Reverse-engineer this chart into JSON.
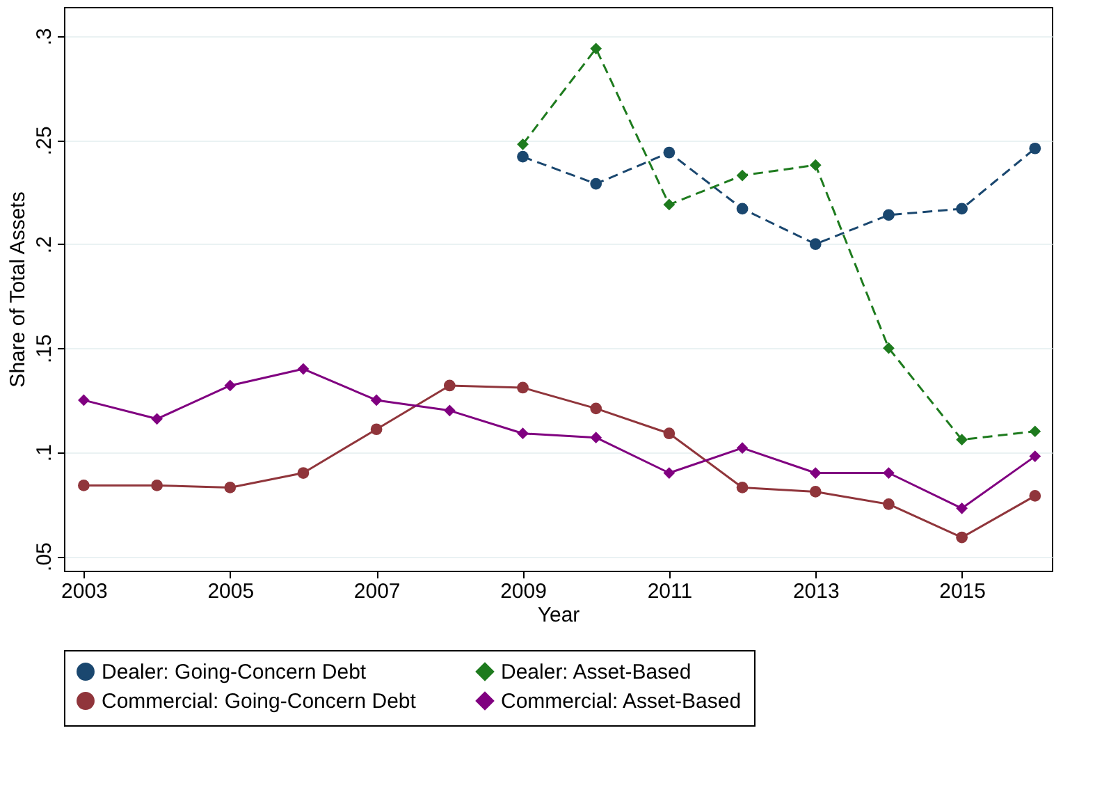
{
  "chart_data": {
    "type": "line",
    "xlabel": "Year",
    "ylabel": "Share of Total Assets",
    "x": [
      2003,
      2004,
      2005,
      2006,
      2007,
      2008,
      2009,
      2010,
      2011,
      2012,
      2013,
      2014,
      2015,
      2016
    ],
    "xlim": [
      2002.73,
      2016.23
    ],
    "xticks": [
      2003,
      2005,
      2007,
      2009,
      2011,
      2013,
      2015
    ],
    "ylim": [
      0.043,
      0.314
    ],
    "yticks": [
      {
        "value": 0.05,
        "label": ".05"
      },
      {
        "value": 0.1,
        "label": ".1"
      },
      {
        "value": 0.15,
        "label": ".15"
      },
      {
        "value": 0.2,
        "label": ".2"
      },
      {
        "value": 0.25,
        "label": ".25"
      },
      {
        "value": 0.3,
        "label": ".3"
      }
    ],
    "grid": "y",
    "legend": "bottom",
    "series": [
      {
        "name": "Dealer: Going-Concern Debt",
        "color": "#1a476f",
        "marker": "circle",
        "line_style": "dashed",
        "values": [
          null,
          null,
          null,
          null,
          null,
          null,
          0.242,
          0.229,
          0.244,
          0.217,
          0.2,
          0.214,
          0.217,
          0.246
        ]
      },
      {
        "name": "Dealer: Asset-Based",
        "color": "#1e7b1e",
        "marker": "diamond",
        "line_style": "dashed",
        "values": [
          null,
          null,
          null,
          null,
          null,
          null,
          0.248,
          0.294,
          0.219,
          0.233,
          0.238,
          0.15,
          0.106,
          0.11
        ]
      },
      {
        "name": "Commercial: Going-Concern Debt",
        "color": "#90353b",
        "marker": "circle",
        "line_style": "solid",
        "values": [
          0.084,
          0.084,
          0.083,
          0.09,
          0.111,
          0.132,
          0.131,
          0.121,
          0.109,
          0.083,
          0.081,
          0.075,
          0.059,
          0.079
        ]
      },
      {
        "name": "Commercial: Asset-Based",
        "color": "#800080",
        "marker": "diamond",
        "line_style": "solid",
        "values": [
          0.125,
          0.116,
          0.132,
          0.14,
          0.125,
          0.12,
          0.109,
          0.107,
          0.09,
          0.102,
          0.09,
          0.09,
          0.073,
          0.098
        ]
      }
    ]
  }
}
